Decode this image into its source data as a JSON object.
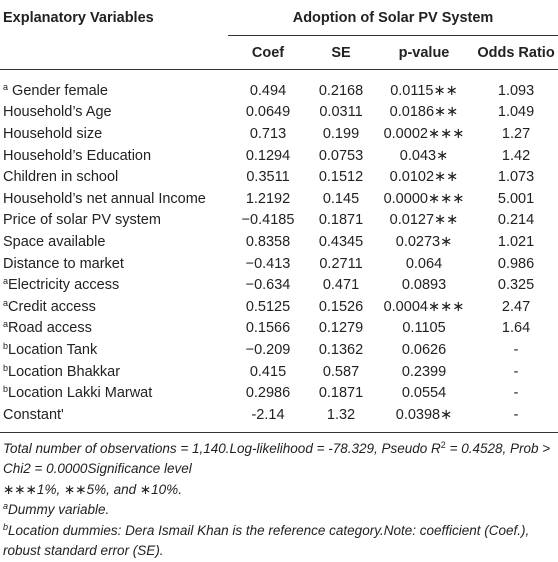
{
  "header": {
    "variables": "Explanatory Variables",
    "group": "Adoption of Solar PV System",
    "columns": [
      "Coef",
      "SE",
      "p-value",
      "Odds Ratio"
    ]
  },
  "table": {
    "rows": [
      {
        "sup": "a",
        "variable": " Gender female",
        "cells": [
          "0.494",
          "0.2168",
          "0.0115∗∗",
          "1.093"
        ]
      },
      {
        "variable": "Household’s Age",
        "cells": [
          "0.0649",
          "0.0311",
          "0.0186∗∗",
          "1.049"
        ]
      },
      {
        "variable": "Household size",
        "cells": [
          "0.713",
          "0.199",
          "0.0002∗∗∗",
          "1.27"
        ]
      },
      {
        "variable": "Household’s Education",
        "cells": [
          "0.1294",
          "0.0753",
          "0.043∗",
          "1.42"
        ]
      },
      {
        "variable": "Children in school",
        "cells": [
          "0.3511",
          "0.1512",
          "0.0102∗∗",
          "1.073"
        ]
      },
      {
        "variable": "Household’s net annual Income",
        "cells": [
          "1.2192",
          "0.145",
          "0.0000∗∗∗",
          "5.001"
        ]
      },
      {
        "variable": "Price of solar PV system",
        "cells": [
          "−0.4185",
          "0.1871",
          "0.0127∗∗",
          "0.214"
        ]
      },
      {
        "variable": "Space available",
        "cells": [
          "0.8358",
          "0.4345",
          "0.0273∗",
          "1.021"
        ]
      },
      {
        "variable": "Distance to market",
        "cells": [
          "−0.413",
          "0.2711",
          "0.064",
          "0.986"
        ]
      },
      {
        "sup": "a",
        "variable": "Electricity access",
        "cells": [
          "−0.634",
          "0.471",
          "0.0893",
          "0.325"
        ]
      },
      {
        "sup": "a",
        "variable": "Credit access",
        "cells": [
          "0.5125",
          "0.1526",
          "0.0004∗∗∗",
          "2.47"
        ]
      },
      {
        "sup": "a",
        "variable": "Road access",
        "cells": [
          "0.1566",
          "0.1279",
          "0.1105",
          "1.64"
        ]
      },
      {
        "sup": "b",
        "variable": "Location Tank",
        "cells": [
          "−0.209",
          "0.1362",
          "0.0626",
          "-"
        ]
      },
      {
        "sup": "b",
        "variable": "Location Bhakkar",
        "cells": [
          "0.415",
          "0.587",
          "0.2399",
          "-"
        ]
      },
      {
        "sup": "b",
        "variable": "Location Lakki Marwat",
        "cells": [
          "0.2986",
          "0.1871",
          "0.0554",
          "-"
        ]
      },
      {
        "variable": "Constant'",
        "cells": [
          "-2.14",
          "1.32",
          "0.0398∗",
          "-"
        ]
      }
    ]
  },
  "notes": {
    "statistics": {
      "before": "Total number of observations = 1,140.Log-likelihood = -78.329, Pseudo R",
      "sup": "2",
      "after": " = 0.4528, Prob > Chi2 = 0.0000Significance level"
    },
    "significance": "∗∗∗1%, ∗∗5%, and ∗10%.",
    "dummy": {
      "sup": "a",
      "text": "Dummy variable."
    },
    "location": {
      "sup": "b",
      "text": "Location dummies: Dera Ismail Khan is the reference category.Note: coefficient (Coef.), robust standard error (SE)."
    }
  }
}
